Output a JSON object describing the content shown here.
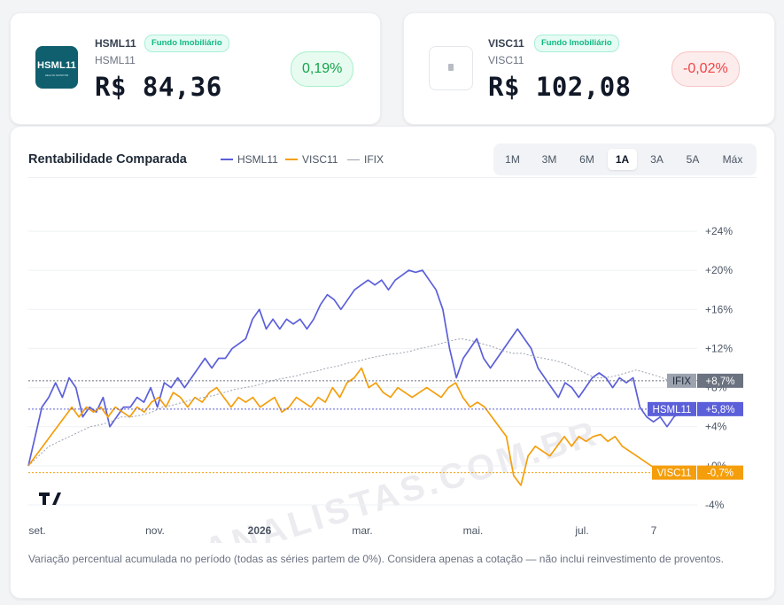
{
  "cards": [
    {
      "ticker": "HSML11",
      "badge": "Fundo Imobiliário",
      "subname": "HSML11",
      "price": "R$ 84,36",
      "change": "0,19%",
      "logo_text": "HSML11",
      "logo_sub": "HEALTH MONITOR"
    },
    {
      "ticker": "VISC11",
      "badge": "Fundo Imobiliário",
      "subname": "VISC11",
      "price": "R$ 102,08",
      "change": "-0,02%"
    }
  ],
  "chart_title": "Rentabilidade Comparada",
  "timeframes": [
    "1M",
    "3M",
    "6M",
    "1A",
    "3A",
    "5A",
    "Máx"
  ],
  "active_timeframe": "1A",
  "watermark": "ANALISTAS.COM.BR",
  "note": "Variação percentual acumulada no período (todas as séries partem de 0%). Considera apenas a cotação — não inclui reinvestimento de proventos.",
  "colors": {
    "hsml11": "#5b5fd9",
    "visc11": "#f59e0b",
    "ifix": "#9ca3af"
  },
  "chart_data": {
    "type": "line",
    "title": "Rentabilidade Comparada",
    "xlabel": "",
    "ylabel": "",
    "x_ticks": [
      "set.",
      "nov.",
      "2026",
      "mar.",
      "mai.",
      "jul.",
      "7"
    ],
    "y_ticks": [
      "+24%",
      "+20%",
      "+16%",
      "+12%",
      "+8%",
      "+4%",
      "+0%",
      "-4%"
    ],
    "ylim": [
      -4,
      24
    ],
    "legend_position": "top",
    "series": [
      {
        "name": "HSML11",
        "last_label": "+5,8%",
        "values": [
          0,
          3,
          6,
          7,
          8.5,
          7,
          9,
          8,
          5,
          6,
          5.5,
          7,
          4,
          5,
          6,
          6,
          7,
          6.5,
          8,
          6,
          8.5,
          8,
          9,
          8,
          9,
          10,
          11,
          10,
          11,
          11,
          12,
          12.5,
          13,
          15,
          16,
          14,
          15,
          14,
          15,
          14.5,
          15,
          14,
          15,
          16.5,
          17.5,
          17,
          16,
          17,
          18,
          18.5,
          19,
          18.5,
          19,
          18,
          19,
          19.5,
          20,
          19.8,
          20,
          19,
          18,
          16,
          12,
          9,
          11,
          12,
          13,
          11,
          10,
          11,
          12,
          13,
          14,
          13,
          12,
          10,
          9,
          8,
          7,
          8.5,
          8,
          7,
          8,
          9,
          9.5,
          9,
          8,
          9,
          8.5,
          9,
          6,
          5,
          4.5,
          5,
          4,
          5,
          5.5,
          5.8
        ]
      },
      {
        "name": "VISC11",
        "last_label": "-0,7%",
        "values": [
          0,
          1,
          2,
          3,
          4,
          5,
          6,
          5,
          6,
          5.5,
          6,
          5,
          6,
          5.5,
          5,
          6,
          5.5,
          6.5,
          7,
          6,
          7.5,
          7,
          6,
          7,
          6.5,
          7.5,
          8,
          7,
          6,
          7,
          6.5,
          7,
          6,
          6.5,
          7,
          5.5,
          6,
          7,
          6.5,
          6,
          7,
          6.5,
          8,
          7,
          8.5,
          9,
          10,
          8,
          8.5,
          7.5,
          7,
          8,
          7.5,
          7,
          7.5,
          8,
          7.5,
          7,
          8,
          8.5,
          7,
          6,
          6.5,
          6,
          5,
          4,
          3,
          -1,
          -2,
          1,
          2,
          1.5,
          1,
          2,
          3,
          2,
          3,
          2.5,
          3,
          3.2,
          2.5,
          3,
          2,
          1.5,
          1,
          0.5,
          0,
          -0.5,
          -1,
          -0.7,
          -1,
          -0.7
        ]
      },
      {
        "name": "IFIX",
        "last_label": "+8,7%",
        "values": [
          0,
          1,
          2,
          2.5,
          3,
          3.5,
          4,
          4.2,
          4.5,
          5,
          5,
          5.2,
          5.5,
          6,
          6.2,
          6.5,
          6.8,
          7,
          7.2,
          7.5,
          7.8,
          8,
          8.2,
          8.5,
          8.8,
          9,
          9.2,
          9.5,
          9.7,
          10,
          10.2,
          10.5,
          10.7,
          11,
          11.2,
          11.4,
          11.5,
          11.7,
          12,
          12.2,
          12.5,
          12.8,
          13,
          12.8,
          12.5,
          12.2,
          11.8,
          11.5,
          11.5,
          11.2,
          11,
          10.8,
          10.5,
          10,
          9.5,
          9,
          9,
          9.2,
          9.5,
          9.8,
          9.5,
          9.2,
          8.8,
          8.5,
          8.8,
          8.7
        ]
      }
    ]
  }
}
